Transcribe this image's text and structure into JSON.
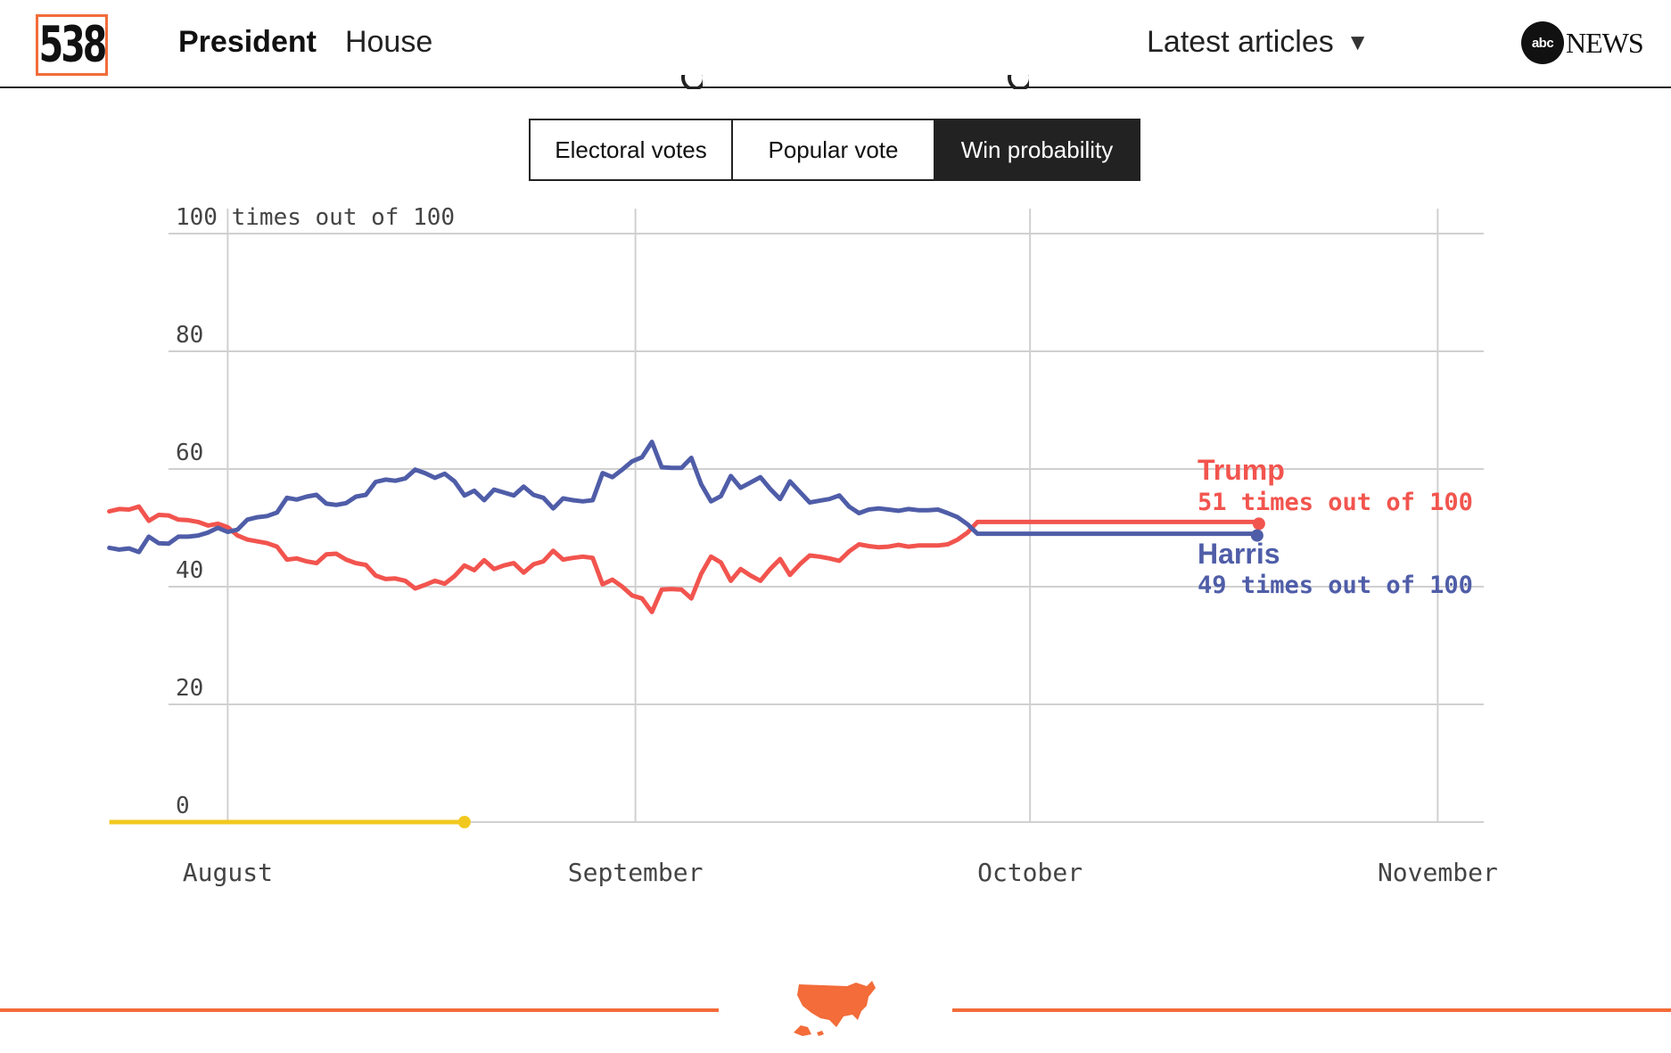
{
  "header": {
    "logo_text": "538",
    "nav": [
      {
        "label": "President",
        "active": true
      },
      {
        "label": "House",
        "active": false
      }
    ],
    "latest_label": "Latest articles",
    "latest_caret": "▼",
    "brand_bug": "abc",
    "brand_name": "NEWS"
  },
  "tabs": [
    {
      "label": "Electoral votes",
      "selected": false
    },
    {
      "label": "Popular vote",
      "selected": false
    },
    {
      "label": "Win probability",
      "selected": true
    }
  ],
  "colors": {
    "trump": "#f2544e",
    "harris": "#4f5da8",
    "today_line": "#f2c81e",
    "accent": "#f36c39",
    "grid": "#d0d0d0"
  },
  "chart_data": {
    "type": "line",
    "title": "",
    "ylabel": "",
    "ylim": [
      0,
      100
    ],
    "yticks": [
      {
        "value": 0,
        "label": "0"
      },
      {
        "value": 20,
        "label": "20"
      },
      {
        "value": 40,
        "label": "40"
      },
      {
        "value": 60,
        "label": "60"
      },
      {
        "value": 80,
        "label": "80"
      },
      {
        "value": 100,
        "label": "100 times out of 100"
      }
    ],
    "x_unit": "days since July 1, 2024",
    "xlim": [
      26.5,
      126.5
    ],
    "xticks": [
      {
        "day": 31,
        "label": "August"
      },
      {
        "day": 62,
        "label": "September"
      },
      {
        "day": 92,
        "label": "October"
      },
      {
        "day": 123,
        "label": "November"
      }
    ],
    "series": [
      {
        "name": "Trump",
        "key": "trump",
        "label_line": "51 times out of 100",
        "final_value": 51,
        "final_day": 109,
        "start_day": 22,
        "step": 0.75,
        "values": [
          52.8,
          53.2,
          53.1,
          53.6,
          51.2,
          52.2,
          52.1,
          51.4,
          51.3,
          51.0,
          50.4,
          50.7,
          50.1,
          48.7,
          48.0,
          47.7,
          47.4,
          46.8,
          44.6,
          44.8,
          44.3,
          44.0,
          45.5,
          45.6,
          44.6,
          44.0,
          43.7,
          41.9,
          41.3,
          41.4,
          41.0,
          39.7,
          40.3,
          41.0,
          40.5,
          41.8,
          43.6,
          42.8,
          44.5,
          43.0,
          43.6,
          44.0,
          42.4,
          43.8,
          44.3,
          46.1,
          44.6,
          44.9,
          45.1,
          44.9,
          40.4,
          41.2,
          40.0,
          38.5,
          38.0,
          35.7,
          39.5,
          39.6,
          39.5,
          38.0,
          42.2,
          45.1,
          44.1,
          41.0,
          43.0,
          41.9,
          41.0,
          43.0,
          44.7,
          42.0,
          43.8,
          45.3,
          45.1,
          44.8,
          44.4,
          46.0,
          47.2,
          46.9,
          46.7,
          46.8,
          47.1,
          46.8,
          47.0,
          47.0,
          47.0,
          47.2,
          48.0,
          49.2,
          51.0
        ]
      },
      {
        "name": "Harris",
        "key": "harris",
        "label_line": "49 times out of 100",
        "final_value": 49,
        "final_day": 109,
        "start_day": 22,
        "step": 0.75,
        "values": [
          46.6,
          46.3,
          46.5,
          45.9,
          48.5,
          47.4,
          47.3,
          48.5,
          48.5,
          48.7,
          49.2,
          50.0,
          49.3,
          49.7,
          51.4,
          51.8,
          52.0,
          52.6,
          55.1,
          54.8,
          55.3,
          55.6,
          54.1,
          53.9,
          54.2,
          55.3,
          55.6,
          57.8,
          58.2,
          58.0,
          58.4,
          59.9,
          59.3,
          58.5,
          59.2,
          57.9,
          55.5,
          56.3,
          54.7,
          56.5,
          56.0,
          55.5,
          57.0,
          55.6,
          55.1,
          53.3,
          55.0,
          54.7,
          54.5,
          54.7,
          59.3,
          58.6,
          59.9,
          61.3,
          62.0,
          64.6,
          60.3,
          60.2,
          60.2,
          61.9,
          57.4,
          54.5,
          55.4,
          58.8,
          56.8,
          57.7,
          58.6,
          56.6,
          54.9,
          57.9,
          56.1,
          54.3,
          54.6,
          54.9,
          55.5,
          53.6,
          52.5,
          53.1,
          53.3,
          53.1,
          52.9,
          53.2,
          53.0,
          53.0,
          53.1,
          52.5,
          51.8,
          50.6,
          49.0
        ]
      }
    ],
    "today_marker": {
      "start_day": 22,
      "end_day": 49,
      "value": 0
    }
  }
}
